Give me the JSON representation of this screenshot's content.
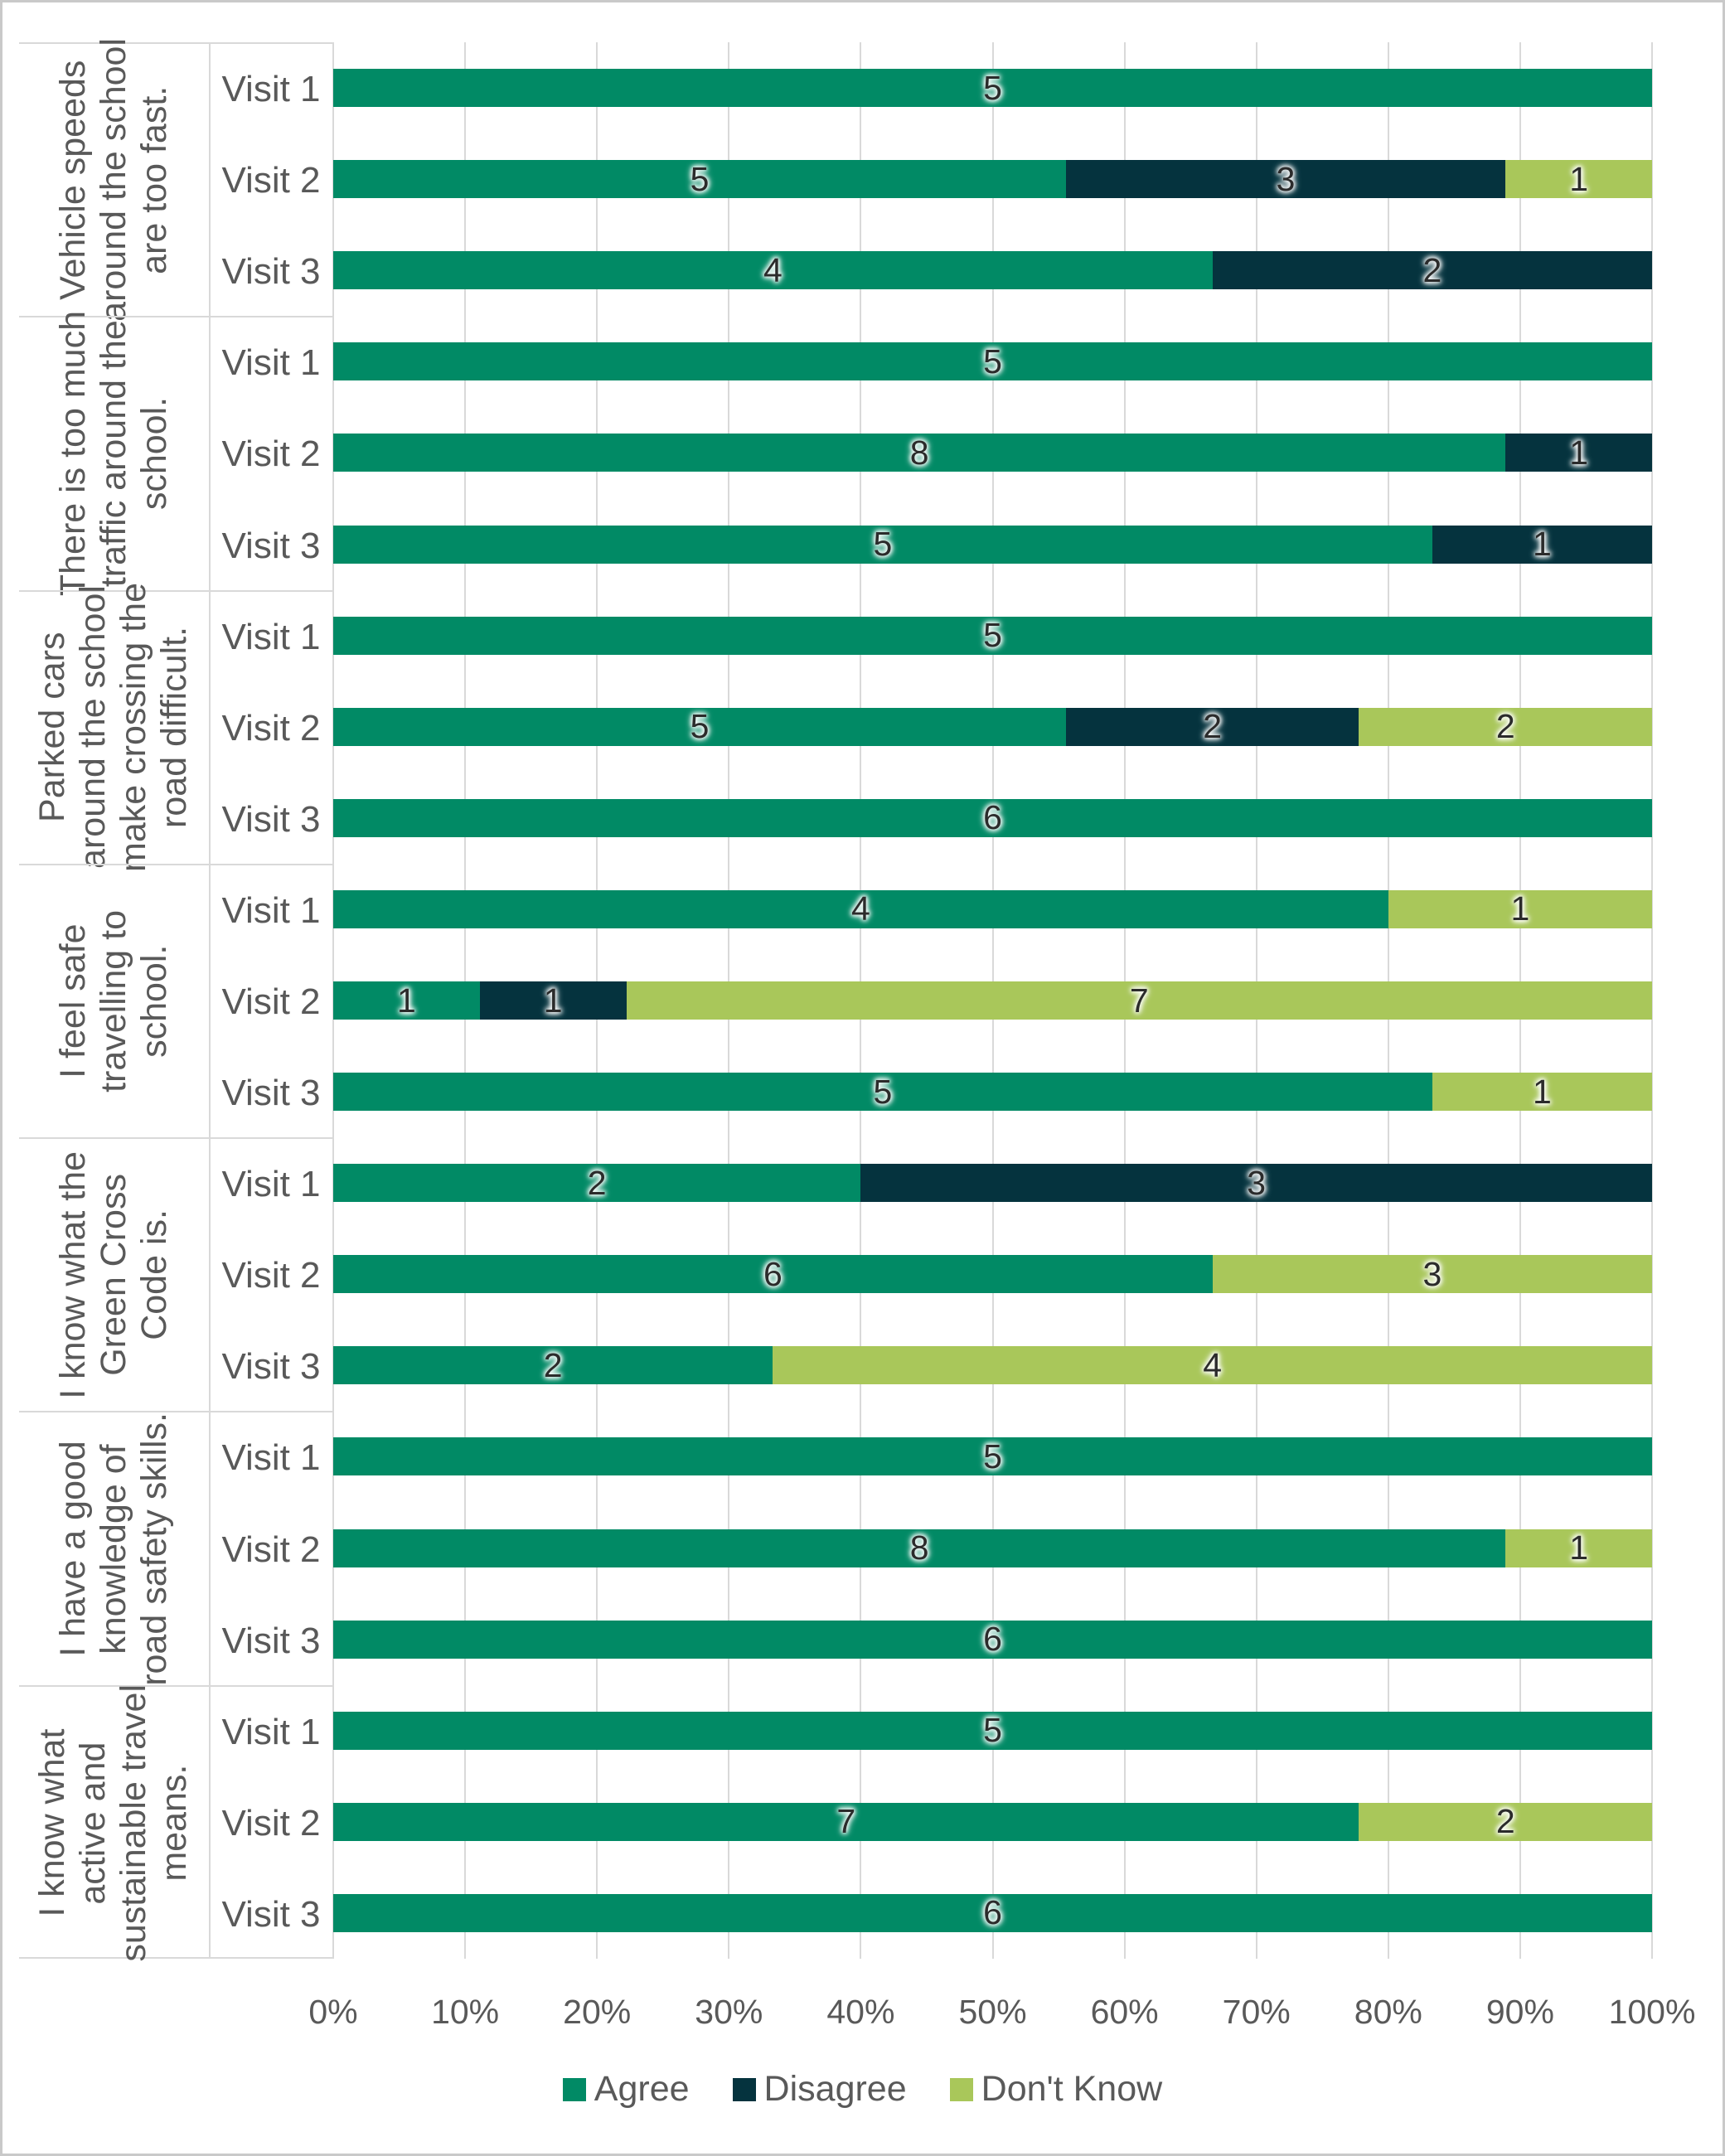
{
  "chart_data": {
    "type": "bar",
    "orientation": "horizontal",
    "stacked": true,
    "stack_mode": "100%",
    "value_labels": "counts shown on segments",
    "grid": true,
    "legend_position": "bottom",
    "series": [
      {
        "name": "Agree",
        "color": "#018A65"
      },
      {
        "name": "Disagree",
        "color": "#05333E"
      },
      {
        "name": "Don't Know",
        "color": "#A9C75A"
      }
    ],
    "x_axis": {
      "min": 0,
      "max": 100,
      "ticks": [
        "0%",
        "10%",
        "20%",
        "30%",
        "40%",
        "50%",
        "60%",
        "70%",
        "80%",
        "90%",
        "100%"
      ]
    },
    "groups": [
      {
        "label": "Vehicle speeds\naround the school\nare too fast.",
        "rows": [
          {
            "visit": "Visit 1",
            "segments": [
              {
                "series": "Agree",
                "count": 5,
                "pct": 100
              }
            ]
          },
          {
            "visit": "Visit 2",
            "segments": [
              {
                "series": "Agree",
                "count": 5,
                "pct": 55.56
              },
              {
                "series": "Disagree",
                "count": 3,
                "pct": 33.33
              },
              {
                "series": "Don't Know",
                "count": 1,
                "pct": 11.11
              }
            ]
          },
          {
            "visit": "Visit 3",
            "segments": [
              {
                "series": "Agree",
                "count": 4,
                "pct": 66.67
              },
              {
                "series": "Disagree",
                "count": 2,
                "pct": 33.33
              }
            ]
          }
        ]
      },
      {
        "label": "There is too much\ntraffic around the\nschool.",
        "rows": [
          {
            "visit": "Visit 1",
            "segments": [
              {
                "series": "Agree",
                "count": 5,
                "pct": 100
              }
            ]
          },
          {
            "visit": "Visit 2",
            "segments": [
              {
                "series": "Agree",
                "count": 8,
                "pct": 88.89
              },
              {
                "series": "Disagree",
                "count": 1,
                "pct": 11.11
              }
            ]
          },
          {
            "visit": "Visit 3",
            "segments": [
              {
                "series": "Agree",
                "count": 5,
                "pct": 83.33
              },
              {
                "series": "Disagree",
                "count": 1,
                "pct": 16.67
              }
            ]
          }
        ]
      },
      {
        "label": "Parked cars\naround the school\nmake crossing the\nroad difficult.",
        "rows": [
          {
            "visit": "Visit 1",
            "segments": [
              {
                "series": "Agree",
                "count": 5,
                "pct": 100
              }
            ]
          },
          {
            "visit": "Visit 2",
            "segments": [
              {
                "series": "Agree",
                "count": 5,
                "pct": 55.56
              },
              {
                "series": "Disagree",
                "count": 2,
                "pct": 22.22
              },
              {
                "series": "Don't Know",
                "count": 2,
                "pct": 22.22
              }
            ]
          },
          {
            "visit": "Visit 3",
            "segments": [
              {
                "series": "Agree",
                "count": 6,
                "pct": 100
              }
            ]
          }
        ]
      },
      {
        "label": "I feel safe\ntravelling to\nschool.",
        "rows": [
          {
            "visit": "Visit 1",
            "segments": [
              {
                "series": "Agree",
                "count": 4,
                "pct": 80
              },
              {
                "series": "Don't Know",
                "count": 1,
                "pct": 20
              }
            ]
          },
          {
            "visit": "Visit 2",
            "segments": [
              {
                "series": "Agree",
                "count": 1,
                "pct": 11.11
              },
              {
                "series": "Disagree",
                "count": 1,
                "pct": 11.11
              },
              {
                "series": "Don't Know",
                "count": 7,
                "pct": 77.78
              }
            ]
          },
          {
            "visit": "Visit 3",
            "segments": [
              {
                "series": "Agree",
                "count": 5,
                "pct": 83.33
              },
              {
                "series": "Don't Know",
                "count": 1,
                "pct": 16.67
              }
            ]
          }
        ]
      },
      {
        "label": "I know what the\nGreen Cross\nCode is.",
        "rows": [
          {
            "visit": "Visit 1",
            "segments": [
              {
                "series": "Agree",
                "count": 2,
                "pct": 40
              },
              {
                "series": "Disagree",
                "count": 3,
                "pct": 60
              }
            ]
          },
          {
            "visit": "Visit 2",
            "segments": [
              {
                "series": "Agree",
                "count": 6,
                "pct": 66.67
              },
              {
                "series": "Don't Know",
                "count": 3,
                "pct": 33.33
              }
            ]
          },
          {
            "visit": "Visit 3",
            "segments": [
              {
                "series": "Agree",
                "count": 2,
                "pct": 33.33
              },
              {
                "series": "Don't Know",
                "count": 4,
                "pct": 66.67
              }
            ]
          }
        ]
      },
      {
        "label": "I have a good\nknowledge of\nroad safety skills.",
        "rows": [
          {
            "visit": "Visit 1",
            "segments": [
              {
                "series": "Agree",
                "count": 5,
                "pct": 100
              }
            ]
          },
          {
            "visit": "Visit 2",
            "segments": [
              {
                "series": "Agree",
                "count": 8,
                "pct": 88.89
              },
              {
                "series": "Don't Know",
                "count": 1,
                "pct": 11.11
              }
            ]
          },
          {
            "visit": "Visit 3",
            "segments": [
              {
                "series": "Agree",
                "count": 6,
                "pct": 100
              }
            ]
          }
        ]
      },
      {
        "label": "I know what\nactive and\nsustainable travel\nmeans.",
        "rows": [
          {
            "visit": "Visit 1",
            "segments": [
              {
                "series": "Agree",
                "count": 5,
                "pct": 100
              }
            ]
          },
          {
            "visit": "Visit 2",
            "segments": [
              {
                "series": "Agree",
                "count": 7,
                "pct": 77.78
              },
              {
                "series": "Don't Know",
                "count": 2,
                "pct": 22.22
              }
            ]
          },
          {
            "visit": "Visit 3",
            "segments": [
              {
                "series": "Agree",
                "count": 6,
                "pct": 100
              }
            ]
          }
        ]
      }
    ],
    "colors": {
      "gridline": "#D9D9D9",
      "axis_text": "#595959",
      "frame_border": "#C9C9C9"
    }
  }
}
